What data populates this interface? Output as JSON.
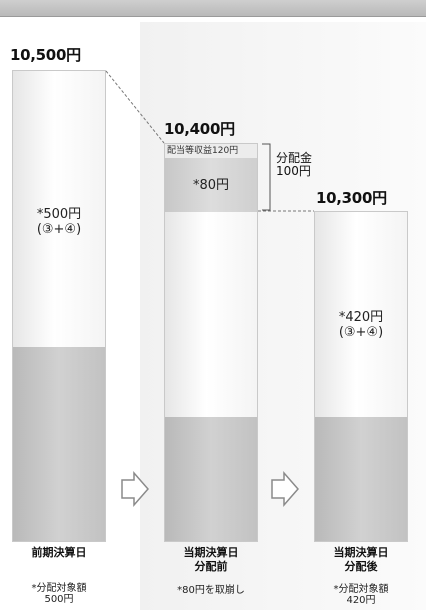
{
  "bars": [
    {
      "total": "10,500円",
      "note_line1": "*500円",
      "note_line2": "(③+④)",
      "label_lines": [
        "前期決算日"
      ],
      "sub_lines": [
        "*分配対象額",
        "500円"
      ]
    },
    {
      "total": "10,400円",
      "top_note": "配当等収益120円",
      "note_line1": "*80円",
      "label_lines": [
        "当期決算日",
        "分配前"
      ],
      "sub_lines": [
        "*80円を取崩し"
      ]
    },
    {
      "total": "10,300円",
      "note_line1": "*420円",
      "note_line2": "(③+④)",
      "label_lines": [
        "当期決算日",
        "分配後"
      ],
      "sub_lines": [
        "*分配対象額",
        "420円"
      ]
    }
  ],
  "distribution": {
    "line1": "分配金",
    "line2": "100円"
  },
  "colors": {
    "bar_light": "#f4f4f4",
    "bar_dark": "#c4c4c4",
    "arrow_fill": "#ffffff",
    "arrow_stroke": "#8a8a8a"
  },
  "icons": [
    "right-arrow-icon",
    "right-arrow-icon"
  ]
}
